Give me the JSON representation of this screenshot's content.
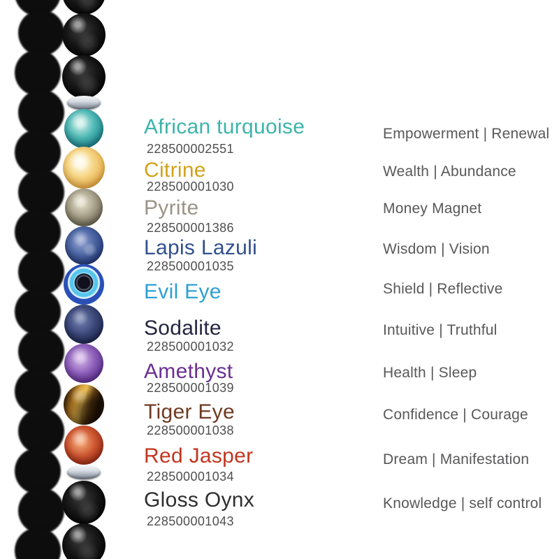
{
  "page": {
    "background": "#ffffff"
  },
  "bracelet": {
    "description": "chakra gemstone bead bracelet strand, vertical, left side",
    "spacer_color": "#c9ced6",
    "beads": [
      {
        "id": "black-onyx",
        "color": "#0b0b0b"
      },
      {
        "id": "black-onyx",
        "color": "#0b0b0b"
      },
      {
        "id": "black-onyx",
        "color": "#0b0b0b"
      },
      {
        "id": "spacer",
        "color": "#c9ced6"
      },
      {
        "id": "african-turquoise",
        "color": "#2fa3a4"
      },
      {
        "id": "citrine",
        "color": "#eab354"
      },
      {
        "id": "pyrite",
        "color": "#8f8a76"
      },
      {
        "id": "lapis-lazuli",
        "color": "#33508f"
      },
      {
        "id": "evil-eye",
        "color": "#2a52b5"
      },
      {
        "id": "sodalite",
        "color": "#2c3767"
      },
      {
        "id": "amethyst",
        "color": "#7c52a8"
      },
      {
        "id": "tiger-eye",
        "color": "#b97f2e"
      },
      {
        "id": "red-jasper",
        "color": "#bf4527"
      },
      {
        "id": "spacer",
        "color": "#c9ced6"
      },
      {
        "id": "black-onyx",
        "color": "#0b0b0b"
      },
      {
        "id": "black-onyx",
        "color": "#0b0b0b"
      }
    ]
  },
  "rows": [
    {
      "name": "African turquoise",
      "color": "#3cb4ab",
      "sku": "228500002551",
      "attribute": "Empowerment | Renewal"
    },
    {
      "name": "Citrine",
      "color": "#d2a21d",
      "sku": "228500001030",
      "attribute": "Wealth | Abundance"
    },
    {
      "name": "Pyrite",
      "color": "#9b9385",
      "sku": "228500001386",
      "attribute": "Money Magnet"
    },
    {
      "name": "Lapis Lazuli",
      "color": "#31508e",
      "sku": "228500001035",
      "attribute": "Wisdom | Vision"
    },
    {
      "name": "Evil Eye",
      "color": "#2f9fd4",
      "sku": "",
      "attribute": "Shield | Reflective"
    },
    {
      "name": "Sodalite",
      "color": "#242440",
      "sku": "228500001032",
      "attribute": "Intuitive | Truthful"
    },
    {
      "name": "Amethyst",
      "color": "#6b2e92",
      "sku": "228500001039",
      "attribute": "Health | Sleep"
    },
    {
      "name": "Tiger Eye",
      "color": "#6f3a22",
      "sku": "228500001038",
      "attribute": "Confidence | Courage"
    },
    {
      "name": "Red Jasper",
      "color": "#c2351f",
      "sku": "228500001034",
      "attribute": "Dream | Manifestation"
    },
    {
      "name": "Gloss Oynx",
      "color": "#2e2e2e",
      "sku": "228500001043",
      "attribute": "Knowledge | self control"
    }
  ]
}
